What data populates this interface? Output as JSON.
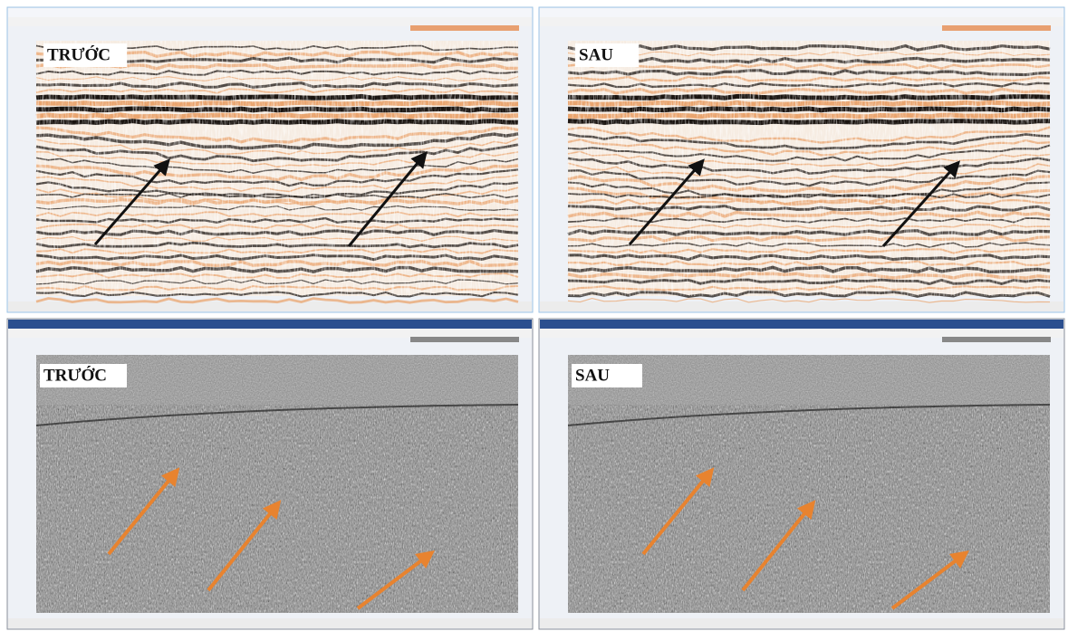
{
  "panels": [
    {
      "label": "TRƯỚC"
    },
    {
      "label": "SAU"
    },
    {
      "label": "TRƯỚC"
    },
    {
      "label": "SAU"
    }
  ]
}
